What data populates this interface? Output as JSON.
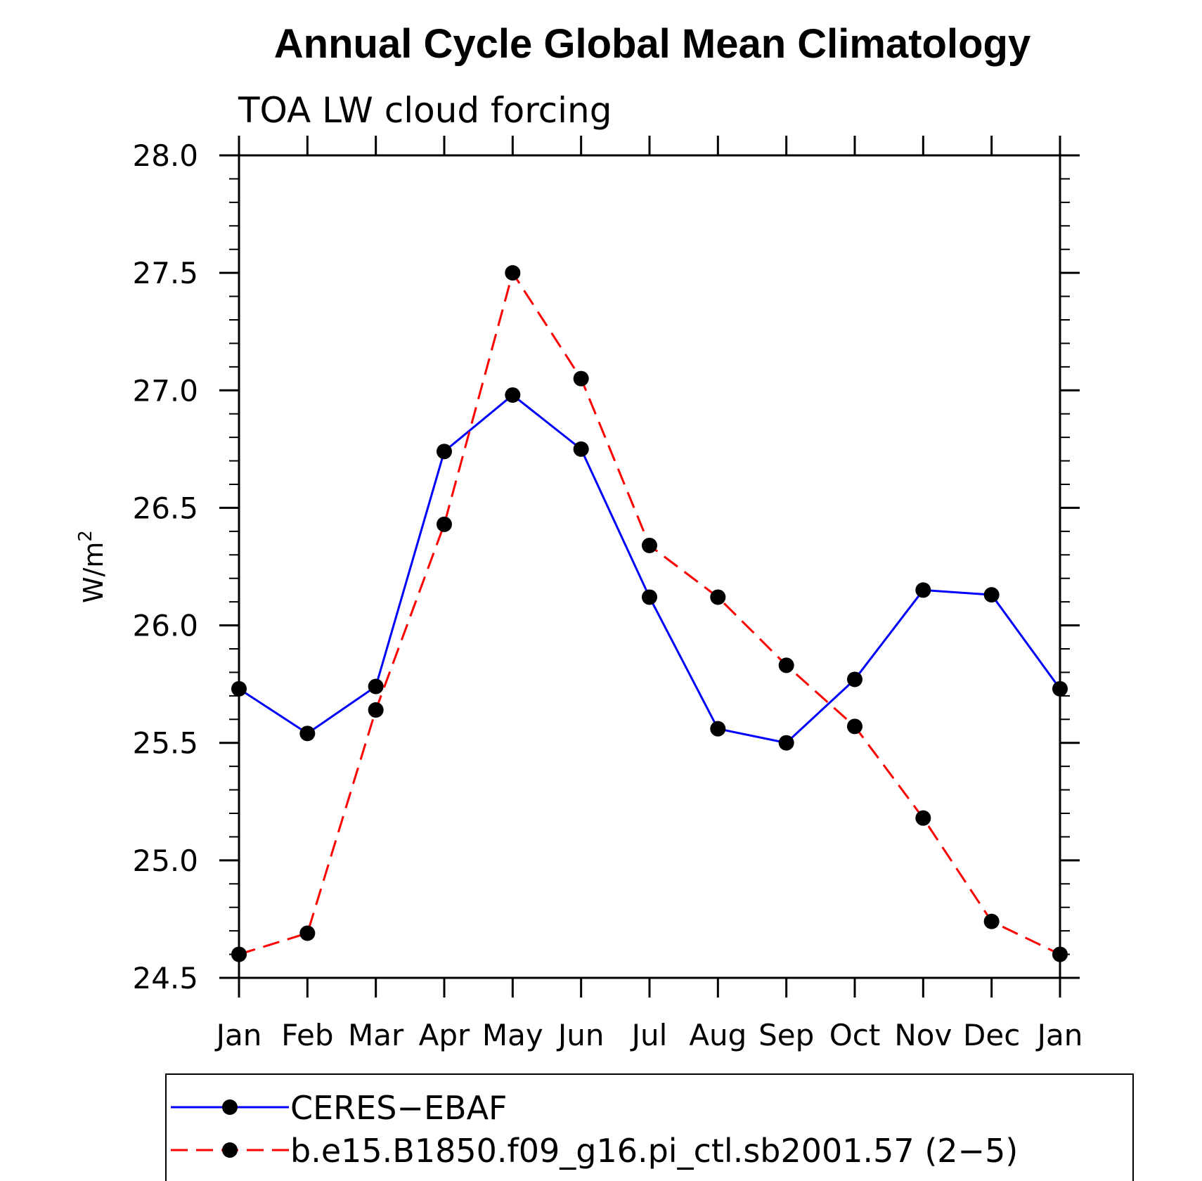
{
  "chart_data": {
    "type": "line",
    "title": "Annual Cycle Global Mean Climatology",
    "subtitle": "TOA LW cloud forcing",
    "ylabel": "W/m",
    "ylabel_superscript": "2",
    "xlabel": "",
    "categories": [
      "Jan",
      "Feb",
      "Mar",
      "Apr",
      "May",
      "Jun",
      "Jul",
      "Aug",
      "Sep",
      "Oct",
      "Nov",
      "Dec",
      "Jan"
    ],
    "ylim": [
      24.5,
      28.0
    ],
    "yticks": [
      "24.5",
      "25.0",
      "25.5",
      "26.0",
      "26.5",
      "27.0",
      "27.5",
      "28.0"
    ],
    "legend_position": "bottom",
    "series": [
      {
        "name": "CERES−EBAF",
        "color": "#0000ff",
        "dash": "solid",
        "values": [
          25.73,
          25.54,
          25.74,
          26.74,
          26.98,
          26.75,
          26.12,
          25.56,
          25.5,
          25.77,
          26.15,
          26.13,
          25.73
        ]
      },
      {
        "name": "b.e15.B1850.f09_g16.pi_ctl.sb2001.57 (2−5)",
        "color": "#ff0000",
        "dash": "dashed",
        "values": [
          24.6,
          24.69,
          25.64,
          26.43,
          27.5,
          27.05,
          26.34,
          26.12,
          25.83,
          25.57,
          25.18,
          24.74,
          24.6
        ]
      }
    ],
    "marker_color": "#000000"
  }
}
